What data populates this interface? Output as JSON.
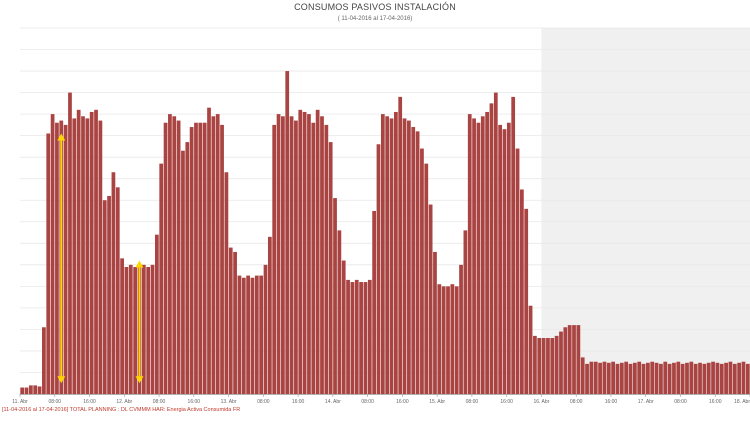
{
  "header": {
    "title": "CONSUMOS PASIVOS INSTALACIÓN",
    "subtitle": "( 11-04-2016 al 17-04-2016)"
  },
  "footer": {
    "legend": "[11-04-2016 al 17-04-2016] TOTAL PLANNING : DL CVMMM HAR: Energia Activa Consumida FR"
  },
  "colors": {
    "bar": "#a94442",
    "arrow": "#ffd400",
    "shade": "#f0f0f0",
    "grid": "#e8e8e8"
  },
  "chart_data": {
    "type": "bar",
    "title": "CONSUMOS PASIVOS INSTALACIÓN",
    "subtitle": "( 11-04-2016 al 17-04-2016)",
    "x_tick_labels": [
      "11. Abr",
      "08:00",
      "16:00",
      "12. Abr",
      "08:00",
      "16:00",
      "13. Abr",
      "08:00",
      "16:00",
      "14. Abr",
      "08:00",
      "16:00",
      "15. Abr",
      "08:00",
      "16:00",
      "16. Abr",
      "08:00",
      "16:00",
      "17. Abr",
      "08:00",
      "16:00",
      "18. Abr"
    ],
    "x_tick_hours": [
      0,
      8,
      16,
      24,
      32,
      40,
      48,
      56,
      64,
      72,
      80,
      88,
      96,
      104,
      112,
      120,
      128,
      136,
      144,
      152,
      160,
      168
    ],
    "ylim": [
      0,
      17
    ],
    "y_gridlines": 17,
    "shaded_from_hour": 120,
    "series": [
      {
        "values": [
          0.3,
          0.3,
          0.4,
          0.4,
          0.35,
          3.1,
          12.1,
          13.0,
          12.6,
          12.7,
          12.5,
          14.0,
          12.8,
          13.2,
          12.9,
          12.8,
          13.1,
          13.2,
          12.7,
          9.0,
          9.2,
          10.3,
          9.6,
          6.3,
          5.9,
          6.0,
          5.9,
          6.0,
          6.0,
          5.9,
          6.0,
          7.4,
          10.7,
          12.6,
          13.0,
          12.9,
          12.7,
          11.3,
          11.7,
          12.4,
          12.6,
          12.6,
          12.6,
          13.3,
          12.9,
          13.0,
          12.5,
          10.3,
          6.8,
          6.6,
          5.5,
          5.4,
          5.5,
          5.4,
          5.5,
          5.5,
          6.0,
          7.3,
          12.5,
          13.0,
          12.9,
          15.0,
          12.9,
          12.7,
          13.2,
          13.1,
          13.0,
          12.6,
          13.2,
          12.9,
          12.5,
          11.7,
          9.1,
          7.6,
          6.2,
          5.3,
          5.2,
          5.3,
          5.2,
          5.2,
          5.3,
          8.5,
          11.6,
          13.0,
          12.9,
          12.8,
          13.1,
          13.8,
          12.8,
          12.7,
          12.4,
          12.2,
          11.4,
          10.7,
          8.8,
          6.6,
          5.1,
          5.0,
          5.0,
          5.1,
          5.0,
          6.0,
          7.6,
          13.0,
          12.8,
          12.6,
          12.9,
          13.1,
          13.5,
          14.0,
          12.5,
          12.3,
          12.6,
          13.8,
          11.4,
          9.5,
          8.6,
          4.1,
          2.7,
          2.6,
          2.6,
          2.6,
          2.6,
          2.7,
          2.9,
          3.1,
          3.2,
          3.2,
          3.2,
          1.7,
          1.4,
          1.5,
          1.5,
          1.45,
          1.5,
          1.45,
          1.5,
          1.4,
          1.45,
          1.5,
          1.4,
          1.45,
          1.5,
          1.4,
          1.45,
          1.5,
          1.45,
          1.4,
          1.5,
          1.4,
          1.45,
          1.5,
          1.4,
          1.45,
          1.5,
          1.4,
          1.45,
          1.4,
          1.45,
          1.5,
          1.45,
          1.4,
          1.45,
          1.5,
          1.4,
          1.45,
          1.5,
          1.4,
          1.45,
          1.5,
          1.4
        ]
      }
    ]
  },
  "annotations": {
    "arrows": [
      {
        "hour": 9,
        "from_value": 0.5,
        "to_value": 12.1
      },
      {
        "hour": 27,
        "from_value": 0.5,
        "to_value": 6.2
      }
    ]
  }
}
